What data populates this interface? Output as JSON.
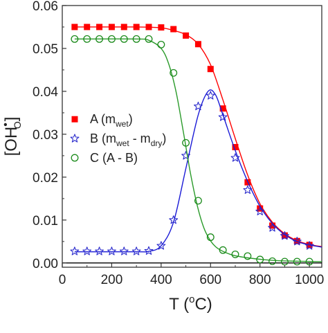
{
  "chart_data": {
    "type": "scatter",
    "xlabel": {
      "main": "T (",
      "sup": "o",
      "tail": "C)"
    },
    "ylabel": {
      "main": "[OH",
      "sup": "•",
      "sub": "O",
      "tail": "]"
    },
    "xlim": [
      0,
      1050
    ],
    "ylim": [
      -0.001,
      0.06
    ],
    "xticks": [
      "0",
      "200",
      "400",
      "600",
      "800",
      "1000"
    ],
    "yticks": [
      "0.00",
      "0.01",
      "0.02",
      "0.03",
      "0.04",
      "0.05",
      "0.06"
    ],
    "baseline": 0,
    "legend_position": "left",
    "series": [
      {
        "legend": {
          "main": "A (m",
          "sub": "wet",
          "tail": ")"
        },
        "marker": "square",
        "color": "#ff0000",
        "line_color": "#ff0000",
        "points": [
          [
            50,
            0.055
          ],
          [
            100,
            0.055
          ],
          [
            150,
            0.055
          ],
          [
            200,
            0.055
          ],
          [
            250,
            0.055
          ],
          [
            300,
            0.055
          ],
          [
            350,
            0.055
          ],
          [
            400,
            0.0549
          ],
          [
            450,
            0.0545
          ],
          [
            500,
            0.053
          ],
          [
            550,
            0.051
          ],
          [
            600,
            0.0452
          ],
          [
            650,
            0.036
          ],
          [
            700,
            0.027
          ],
          [
            750,
            0.0188
          ],
          [
            800,
            0.0127
          ],
          [
            850,
            0.0087
          ],
          [
            900,
            0.0064
          ],
          [
            950,
            0.0051
          ],
          [
            1000,
            0.0042
          ]
        ],
        "fit": [
          [
            50,
            0.055
          ],
          [
            300,
            0.055
          ],
          [
            400,
            0.0548
          ],
          [
            450,
            0.0542
          ],
          [
            500,
            0.0532
          ],
          [
            550,
            0.051
          ],
          [
            600,
            0.0462
          ],
          [
            650,
            0.038
          ],
          [
            700,
            0.029
          ],
          [
            750,
            0.0205
          ],
          [
            800,
            0.0138
          ],
          [
            850,
            0.0095
          ],
          [
            900,
            0.0068
          ],
          [
            950,
            0.0052
          ],
          [
            1000,
            0.0043
          ],
          [
            1050,
            0.0038
          ]
        ]
      },
      {
        "legend": {
          "main": "B (m",
          "sub": "wet",
          "mid": " - m",
          "sub2": "dry",
          "tail": ")"
        },
        "marker": "star",
        "color": "#2a2acc",
        "line_color": "#1a1ad6",
        "points": [
          [
            50,
            0.0027
          ],
          [
            100,
            0.0027
          ],
          [
            150,
            0.0027
          ],
          [
            200,
            0.0027
          ],
          [
            250,
            0.0027
          ],
          [
            300,
            0.0027
          ],
          [
            350,
            0.0028
          ],
          [
            400,
            0.004
          ],
          [
            450,
            0.01
          ],
          [
            500,
            0.025
          ],
          [
            550,
            0.0365
          ],
          [
            600,
            0.039
          ],
          [
            650,
            0.034
          ],
          [
            700,
            0.0245
          ],
          [
            750,
            0.017
          ],
          [
            800,
            0.012
          ],
          [
            850,
            0.0082
          ],
          [
            900,
            0.0063
          ],
          [
            950,
            0.005
          ],
          [
            1000,
            0.004
          ]
        ],
        "fit": [
          [
            50,
            0.0026
          ],
          [
            300,
            0.0026
          ],
          [
            350,
            0.0027
          ],
          [
            400,
            0.004
          ],
          [
            450,
            0.0095
          ],
          [
            500,
            0.022
          ],
          [
            550,
            0.0345
          ],
          [
            590,
            0.04
          ],
          [
            620,
            0.0392
          ],
          [
            650,
            0.0345
          ],
          [
            700,
            0.0262
          ],
          [
            750,
            0.019
          ],
          [
            800,
            0.0132
          ],
          [
            850,
            0.0092
          ],
          [
            900,
            0.0066
          ],
          [
            950,
            0.005
          ],
          [
            1000,
            0.0042
          ],
          [
            1050,
            0.0037
          ]
        ]
      },
      {
        "legend": {
          "main": "C (A - B)"
        },
        "marker": "circle",
        "color": "#1a8a1a",
        "line_color": "#2a9a2a",
        "points": [
          [
            50,
            0.0522
          ],
          [
            100,
            0.0522
          ],
          [
            150,
            0.0522
          ],
          [
            200,
            0.0522
          ],
          [
            250,
            0.0522
          ],
          [
            300,
            0.0522
          ],
          [
            350,
            0.0522
          ],
          [
            400,
            0.0509
          ],
          [
            450,
            0.0443
          ],
          [
            500,
            0.028
          ],
          [
            550,
            0.0145
          ],
          [
            600,
            0.006
          ],
          [
            650,
            0.003
          ],
          [
            700,
            0.002
          ],
          [
            750,
            0.0016
          ],
          [
            800,
            0.0008
          ],
          [
            850,
            0.0004
          ],
          [
            900,
            0.0003
          ],
          [
            950,
            0.0003
          ],
          [
            1000,
            0.0003
          ]
        ],
        "fit": [
          [
            50,
            0.0522
          ],
          [
            300,
            0.0522
          ],
          [
            350,
            0.0519
          ],
          [
            400,
            0.05
          ],
          [
            430,
            0.0465
          ],
          [
            460,
            0.04
          ],
          [
            490,
            0.0305
          ],
          [
            520,
            0.0205
          ],
          [
            550,
            0.0125
          ],
          [
            580,
            0.0072
          ],
          [
            620,
            0.0038
          ],
          [
            680,
            0.002
          ],
          [
            750,
            0.0012
          ],
          [
            850,
            0.0006
          ],
          [
            950,
            0.0004
          ],
          [
            1050,
            0.0003
          ]
        ]
      }
    ]
  }
}
